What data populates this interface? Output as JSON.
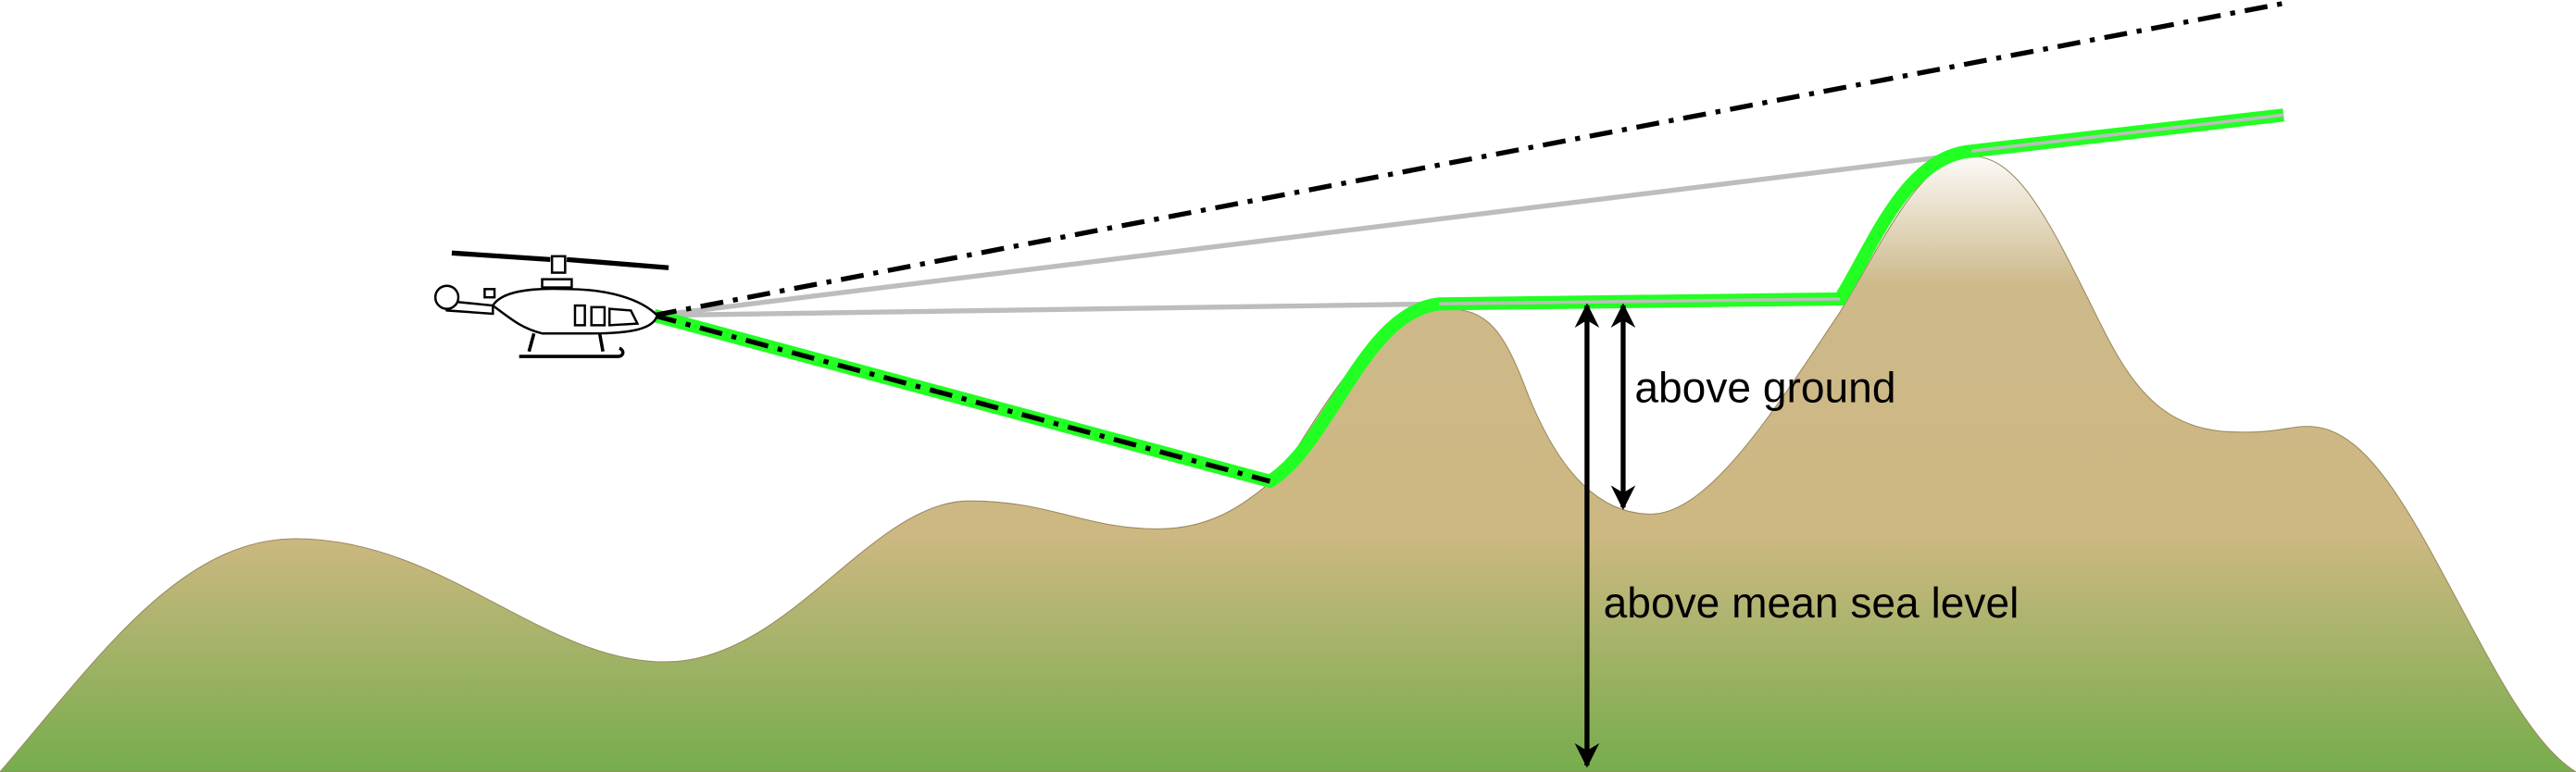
{
  "labels": {
    "above_ground": "above ground",
    "above_msl": "above mean sea level"
  }
}
